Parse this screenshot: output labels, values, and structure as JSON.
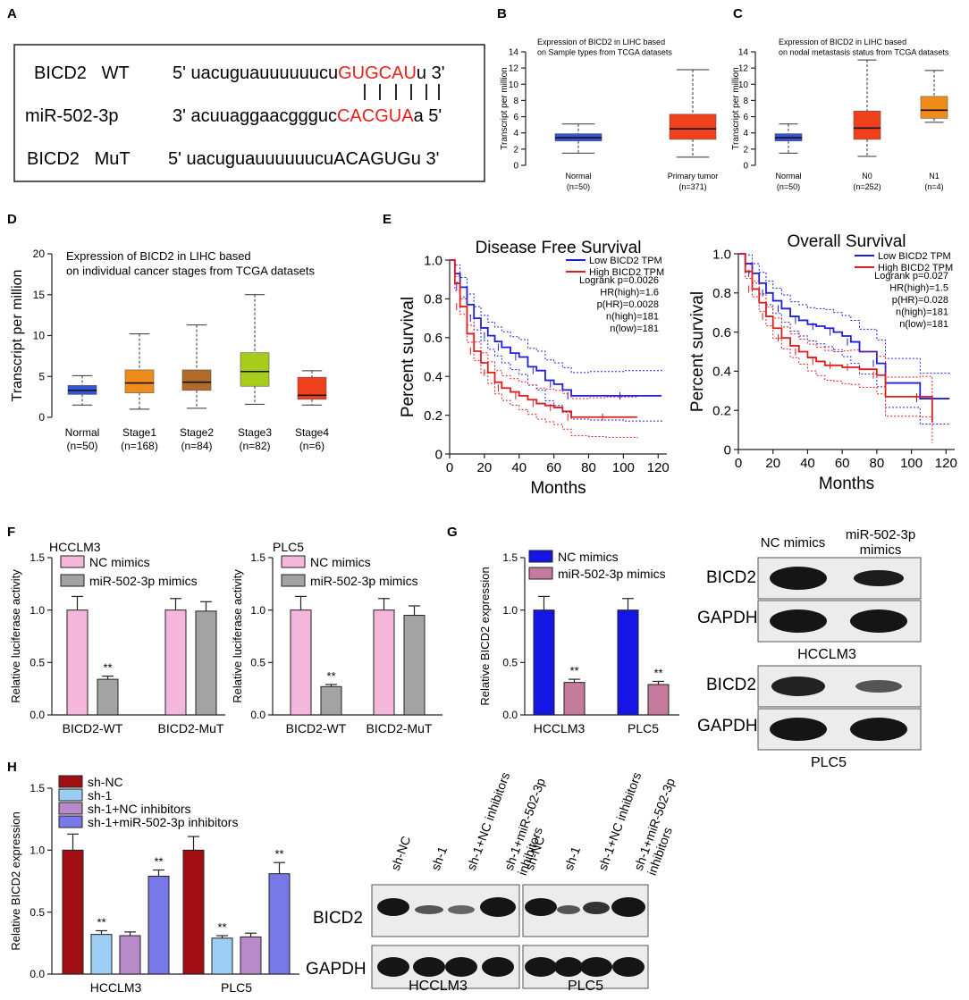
{
  "panel_labels": [
    "A",
    "B",
    "C",
    "D",
    "E",
    "F",
    "G",
    "H"
  ],
  "panelA": {
    "rows": [
      {
        "name": "BICD2   WT",
        "prefix": "5' uacuguauuuuuucu",
        "highlight": "GUGCAU",
        "suffix": "u 3'"
      },
      {
        "name": "miR-502-3p",
        "prefix": "3' acuuaggaacggguc",
        "highlight": "CACGUA",
        "suffix": "a 5'"
      },
      {
        "name": "BICD2   MuT",
        "prefix": "5' uacuguauuuuuucuACAGUGu 3'",
        "highlight": "",
        "suffix": ""
      }
    ],
    "highlight_color": "#e8201c"
  },
  "chart_data": [
    {
      "id": "B",
      "type": "box",
      "title": "Expression of BICD2 in LIHC based\non Sample types from TCGA datasets",
      "ylabel": "Transcript per million",
      "ylim": [
        0,
        14
      ],
      "yticks": [
        0,
        2,
        4,
        6,
        8,
        10,
        12,
        14
      ],
      "groups": [
        {
          "label": "Normal",
          "n": "(n=50)",
          "min": 1.5,
          "q1": 3.0,
          "median": 3.4,
          "q3": 3.9,
          "max": 5.1,
          "color": "#3355d8"
        },
        {
          "label": "Primary tumor",
          "n": "(n=371)",
          "min": 1.0,
          "q1": 3.2,
          "median": 4.5,
          "q3": 6.3,
          "max": 11.8,
          "color": "#f0401c"
        }
      ]
    },
    {
      "id": "C",
      "type": "box",
      "title": "Expression of BICD2 in LIHC based\non nodal metastasis status from TCGA datasets",
      "ylabel": "Transcript per million",
      "ylim": [
        0,
        14
      ],
      "yticks": [
        0,
        2,
        4,
        6,
        8,
        10,
        12,
        14
      ],
      "groups": [
        {
          "label": "Normal",
          "n": "(n=50)",
          "min": 1.5,
          "q1": 3.0,
          "median": 3.4,
          "q3": 3.9,
          "max": 5.1,
          "color": "#3355d8"
        },
        {
          "label": "N0",
          "n": "(n=252)",
          "min": 1.1,
          "q1": 3.2,
          "median": 4.6,
          "q3": 6.7,
          "max": 13.0,
          "color": "#f0401c"
        },
        {
          "label": "N1",
          "n": "(n=4)",
          "min": 5.3,
          "q1": 5.8,
          "median": 6.8,
          "q3": 8.5,
          "max": 11.7,
          "color": "#f08c1c"
        }
      ]
    },
    {
      "id": "D",
      "type": "box",
      "title": "Expression of BICD2 in LIHC based\non individual cancer stages from TCGA datasets",
      "ylabel": "Transcript per million",
      "ylim": [
        0,
        20
      ],
      "yticks": [
        0,
        5,
        10,
        15,
        20
      ],
      "groups": [
        {
          "label": "Normal",
          "n": "(n=50)",
          "min": 1.5,
          "q1": 2.8,
          "median": 3.3,
          "q3": 3.9,
          "max": 5.1,
          "color": "#3355d8"
        },
        {
          "label": "Stage1",
          "n": "(n=168)",
          "min": 1.0,
          "q1": 3.0,
          "median": 4.2,
          "q3": 5.8,
          "max": 10.2,
          "color": "#f08c1c"
        },
        {
          "label": "Stage2",
          "n": "(n=84)",
          "min": 1.1,
          "q1": 3.3,
          "median": 4.3,
          "q3": 5.8,
          "max": 11.3,
          "color": "#b06a2a"
        },
        {
          "label": "Stage3",
          "n": "(n=82)",
          "min": 1.6,
          "q1": 3.8,
          "median": 5.6,
          "q3": 7.9,
          "max": 15.0,
          "color": "#a8cc1a"
        },
        {
          "label": "Stage4",
          "n": "(n=6)",
          "min": 1.5,
          "q1": 2.2,
          "median": 2.7,
          "q3": 4.9,
          "max": 5.7,
          "color": "#f0401c"
        }
      ]
    },
    {
      "id": "E1",
      "type": "line",
      "title": "Disease Free Survival",
      "xlabel": "Months",
      "ylabel": "Percent survival",
      "xlim": [
        0,
        125
      ],
      "ylim": [
        0,
        1.0
      ],
      "xticks": [
        0,
        20,
        40,
        60,
        80,
        100,
        120
      ],
      "yticks": [
        0,
        0.2,
        0.4,
        0.6,
        0.8,
        1.0
      ],
      "legend": [
        "Low BICD2 TPM",
        "High BICD2 TPM"
      ],
      "stats": [
        "Logrank p=0.0026",
        "HR(high)=1.6",
        "p(HR)=0.0028",
        "n(high)=181",
        "n(low)=181"
      ],
      "series": [
        {
          "name": "Low BICD2 TPM",
          "color": "#1f1fd6",
          "x": [
            0,
            3,
            6,
            10,
            14,
            18,
            22,
            26,
            30,
            35,
            40,
            45,
            50,
            55,
            60,
            65,
            70,
            80,
            100,
            122
          ],
          "y": [
            1.0,
            0.93,
            0.86,
            0.77,
            0.7,
            0.65,
            0.61,
            0.58,
            0.55,
            0.52,
            0.5,
            0.45,
            0.43,
            0.38,
            0.36,
            0.33,
            0.3,
            0.3,
            0.3,
            0.3
          ]
        },
        {
          "name": "High BICD2 TPM",
          "color": "#e01d1d",
          "x": [
            0,
            3,
            6,
            10,
            14,
            18,
            22,
            26,
            30,
            35,
            40,
            45,
            50,
            55,
            60,
            65,
            70,
            80,
            90,
            108
          ],
          "y": [
            1.0,
            0.88,
            0.76,
            0.62,
            0.53,
            0.47,
            0.42,
            0.37,
            0.34,
            0.32,
            0.3,
            0.28,
            0.26,
            0.25,
            0.24,
            0.22,
            0.19,
            0.19,
            0.19,
            0.19
          ]
        }
      ]
    },
    {
      "id": "E2",
      "type": "line",
      "title": "Overall Survival",
      "xlabel": "Months",
      "ylabel": "Percent survival",
      "xlim": [
        0,
        125
      ],
      "ylim": [
        0,
        1.0
      ],
      "xticks": [
        0,
        20,
        40,
        60,
        80,
        100,
        120
      ],
      "yticks": [
        0,
        0.2,
        0.4,
        0.6,
        0.8,
        1.0
      ],
      "legend": [
        "Low BICD2 TPM",
        "High BICD2 TPM"
      ],
      "stats": [
        "Logrank p=0.027",
        "HR(high)=1.5",
        "p(HR)=0.028",
        "n(high)=181",
        "n(low)=181"
      ],
      "series": [
        {
          "name": "Low BICD2 TPM",
          "color": "#1f1fd6",
          "x": [
            0,
            4,
            8,
            12,
            16,
            20,
            25,
            30,
            35,
            40,
            45,
            50,
            55,
            60,
            65,
            70,
            80,
            85,
            105,
            122
          ],
          "y": [
            1.0,
            0.95,
            0.9,
            0.85,
            0.8,
            0.76,
            0.72,
            0.68,
            0.66,
            0.64,
            0.63,
            0.62,
            0.6,
            0.58,
            0.55,
            0.5,
            0.44,
            0.34,
            0.26,
            0.26
          ]
        },
        {
          "name": "High BICD2 TPM",
          "color": "#e01d1d",
          "x": [
            0,
            4,
            8,
            12,
            16,
            20,
            25,
            30,
            35,
            40,
            45,
            50,
            55,
            60,
            65,
            70,
            80,
            85,
            105,
            112
          ],
          "y": [
            1.0,
            0.91,
            0.82,
            0.75,
            0.68,
            0.62,
            0.57,
            0.53,
            0.5,
            0.47,
            0.45,
            0.43,
            0.43,
            0.42,
            0.42,
            0.41,
            0.38,
            0.27,
            0.27,
            0.14
          ]
        }
      ]
    },
    {
      "id": "F1",
      "type": "bar",
      "title": "HCCLM3",
      "ylabel": "Relative luciferase activity",
      "ylim": [
        0,
        1.5
      ],
      "yticks": [
        0.0,
        0.5,
        1.0,
        1.5
      ],
      "categories": [
        "BICD2-WT",
        "BICD2-MuT"
      ],
      "series": [
        {
          "name": "NC mimics",
          "color": "#f5b6dc",
          "values": [
            1.0,
            1.0
          ],
          "errors": [
            0.13,
            0.11
          ]
        },
        {
          "name": "miR-502-3p mimics",
          "color": "#a3a3a3",
          "values": [
            0.34,
            0.99
          ],
          "errors": [
            0.03,
            0.09
          ]
        }
      ],
      "annotations": [
        {
          "category": 0,
          "series": 1,
          "text": "**"
        }
      ]
    },
    {
      "id": "F2",
      "type": "bar",
      "title": "PLC5",
      "ylabel": "Relative luciferase activity",
      "ylim": [
        0,
        1.5
      ],
      "yticks": [
        0.0,
        0.5,
        1.0,
        1.5
      ],
      "categories": [
        "BICD2-WT",
        "BICD2-MuT"
      ],
      "series": [
        {
          "name": "NC mimics",
          "color": "#f5b6dc",
          "values": [
            1.0,
            1.0
          ],
          "errors": [
            0.13,
            0.11
          ]
        },
        {
          "name": "miR-502-3p mimics",
          "color": "#a3a3a3",
          "values": [
            0.27,
            0.95
          ],
          "errors": [
            0.02,
            0.09
          ]
        }
      ],
      "annotations": [
        {
          "category": 0,
          "series": 1,
          "text": "**"
        }
      ]
    },
    {
      "id": "G",
      "type": "bar",
      "title": "",
      "ylabel": "Relative BICD2 expression",
      "ylim": [
        0,
        1.5
      ],
      "yticks": [
        0.0,
        0.5,
        1.0,
        1.5
      ],
      "categories": [
        "HCCLM3",
        "PLC5"
      ],
      "series": [
        {
          "name": "NC mimics",
          "color": "#1515e6",
          "values": [
            1.0,
            1.0
          ],
          "errors": [
            0.13,
            0.11
          ]
        },
        {
          "name": "miR-502-3p mimics",
          "color": "#c77b9c",
          "values": [
            0.31,
            0.29
          ],
          "errors": [
            0.03,
            0.03
          ]
        }
      ],
      "annotations": [
        {
          "category": 0,
          "series": 1,
          "text": "**"
        },
        {
          "category": 1,
          "series": 1,
          "text": "**"
        }
      ]
    },
    {
      "id": "H",
      "type": "bar",
      "title": "",
      "ylabel": "Relative BICD2 expression",
      "ylim": [
        0,
        1.5
      ],
      "yticks": [
        0.0,
        0.5,
        1.0,
        1.5
      ],
      "categories": [
        "HCCLM3",
        "PLC5"
      ],
      "series": [
        {
          "name": "sh-NC",
          "color": "#a00d12",
          "values": [
            1.0,
            1.0
          ],
          "errors": [
            0.13,
            0.11
          ]
        },
        {
          "name": "sh-1",
          "color": "#9ccdf2",
          "values": [
            0.32,
            0.29
          ],
          "errors": [
            0.03,
            0.02
          ]
        },
        {
          "name": "sh-1+NC inhibitors",
          "color": "#b98ac9",
          "values": [
            0.31,
            0.3
          ],
          "errors": [
            0.03,
            0.03
          ]
        },
        {
          "name": "sh-1+miR-502-3p inhibitors",
          "color": "#7878e8",
          "values": [
            0.79,
            0.81
          ],
          "errors": [
            0.05,
            0.09
          ]
        }
      ],
      "annotations": [
        {
          "category": 0,
          "series": 1,
          "text": "**"
        },
        {
          "category": 0,
          "series": 3,
          "text": "**"
        },
        {
          "category": 1,
          "series": 1,
          "text": "**"
        },
        {
          "category": 1,
          "series": 3,
          "text": "**"
        }
      ]
    }
  ],
  "blotG": {
    "columns": [
      "NC mimics",
      "miR-502-3p\nmimics"
    ],
    "rows": [
      "BICD2",
      "GAPDH",
      "BICD2",
      "GAPDH"
    ],
    "cells": [
      "HCCLM3",
      "PLC5"
    ]
  },
  "blotH": {
    "columns": [
      "sh-NC",
      "sh-1",
      "sh-1+NC inhibitors",
      "sh-1+miR-502-3p\ninhibitors",
      "sh-NC",
      "sh-1",
      "sh-1+NC inhibitors",
      "sh-1+miR-502-3p\ninhibitors"
    ],
    "rows": [
      "BICD2",
      "GAPDH"
    ],
    "cells": [
      "HCCLM3",
      "PLC5"
    ]
  }
}
